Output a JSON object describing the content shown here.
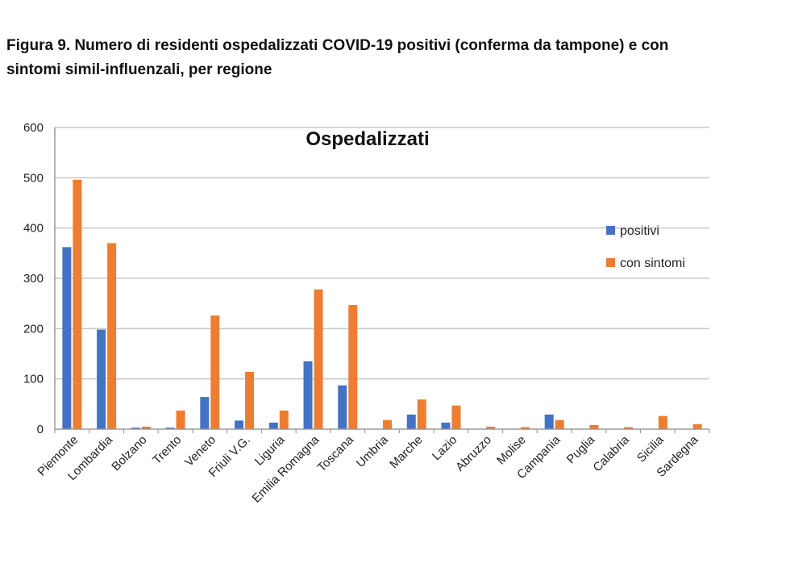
{
  "figure": {
    "caption_line1": "Figura 9. Numero di residenti ospedalizzati COVID-19 positivi (conferma da tampone) e con",
    "caption_line2": "sintomi simil-influenzali, per regione"
  },
  "chart_data": {
    "type": "bar",
    "title": "Ospedalizzati",
    "xlabel": "",
    "ylabel": "",
    "ylim": [
      0,
      600
    ],
    "yticks": [
      0,
      100,
      200,
      300,
      400,
      500,
      600
    ],
    "grid": true,
    "legend_position": "right",
    "categories": [
      "Piemonte",
      "Lombardia",
      "Bolzano",
      "Trento",
      "Veneto",
      "Friuli V.G.",
      "Liguria",
      "Emilia Romagna",
      "Toscana",
      "Umbria",
      "Marche",
      "Lazio",
      "Abruzzo",
      "Molise",
      "Campania",
      "Puglia",
      "Calabria",
      "Sicilia",
      "Sardegna"
    ],
    "series": [
      {
        "name": "positivi",
        "color": "#4472C4",
        "values": [
          362,
          198,
          3,
          3,
          64,
          17,
          13,
          135,
          87,
          0,
          29,
          13,
          0,
          0,
          29,
          0,
          0,
          0,
          0
        ]
      },
      {
        "name": "con sintomi",
        "color": "#ED7D31",
        "values": [
          496,
          370,
          5,
          37,
          226,
          114,
          37,
          278,
          247,
          18,
          59,
          47,
          5,
          4,
          18,
          8,
          4,
          26,
          10
        ]
      }
    ]
  }
}
